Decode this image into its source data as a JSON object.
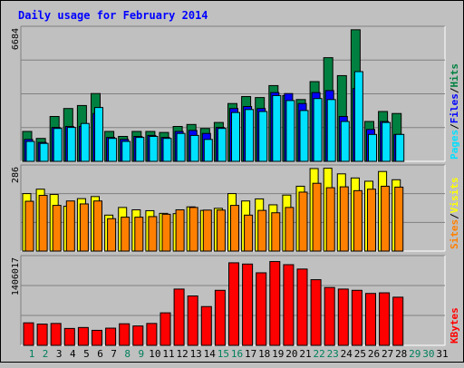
{
  "chart_data": {
    "type": "bar",
    "title": "Daily usage for February 2014",
    "categories": [
      "1",
      "2",
      "3",
      "4",
      "5",
      "6",
      "7",
      "8",
      "9",
      "10",
      "11",
      "12",
      "13",
      "14",
      "15",
      "16",
      "17",
      "18",
      "19",
      "20",
      "21",
      "22",
      "23",
      "24",
      "25",
      "26",
      "27",
      "28",
      "29",
      "30",
      "31"
    ],
    "weekend_days": [
      "1",
      "2",
      "8",
      "9",
      "15",
      "16",
      "22",
      "23",
      "29",
      "30"
    ],
    "panels": [
      {
        "id": "pages-files-hits",
        "ymax_label": "6684",
        "ylim": [
          0,
          6684
        ],
        "ylabel": [
          "Pages",
          "Files",
          "Hits"
        ],
        "series": [
          {
            "name": "Hits",
            "color": "#008040",
            "values": [
              1500,
              1150,
              2250,
              2650,
              2800,
              3400,
              1500,
              1250,
              1500,
              1500,
              1450,
              1750,
              1850,
              1650,
              1950,
              2900,
              3250,
              3200,
              3800,
              3300,
              3100,
              4000,
              5200,
              4300,
              6600,
              2000,
              2500,
              2400
            ]
          },
          {
            "name": "Files",
            "color": "#0000ff",
            "values": [
              1100,
              950,
              1700,
              1750,
              1750,
              2400,
              1200,
              1100,
              1250,
              1300,
              1200,
              1500,
              1550,
              1400,
              1700,
              2650,
              2750,
              2650,
              3450,
              3400,
              2900,
              3450,
              3550,
              2250,
              3650,
              1600,
              2000,
              1350
            ]
          },
          {
            "name": "Pages",
            "color": "#00e0ff",
            "values": [
              1000,
              900,
              1650,
              1700,
              1900,
              2700,
              1150,
              1000,
              1200,
              1250,
              1150,
              1400,
              1300,
              1100,
              1650,
              2450,
              2600,
              2500,
              3300,
              3050,
              2550,
              3150,
              3100,
              2000,
              4500,
              1350,
              1950,
              1350
            ]
          }
        ]
      },
      {
        "id": "sites-visits",
        "ymax_label": "286",
        "ylim": [
          0,
          286
        ],
        "ylabel": [
          "Sites",
          "Visits"
        ],
        "series": [
          {
            "name": "Visits",
            "color": "#ffff00",
            "values": [
              195,
              210,
              192,
              152,
              178,
              185,
              122,
              148,
              140,
              137,
              128,
              127,
              150,
              138,
              145,
              195,
              170,
              177,
              157,
              190,
              220,
              280,
              281,
              262,
              248,
              237,
              270,
              242
            ]
          },
          {
            "name": "Sites",
            "color": "#ff8000",
            "values": [
              169,
              189,
              155,
              170,
              160,
              170,
              110,
              115,
              115,
              117,
              125,
              140,
              148,
              139,
              139,
              155,
              122,
              138,
              130,
              148,
              200,
              230,
              215,
              218,
              205,
              210,
              220,
              217
            ]
          }
        ]
      },
      {
        "id": "kbytes",
        "ymax_label": "1406017",
        "ylim": [
          0,
          1406017
        ],
        "ylabel": [
          "KBytes"
        ],
        "series": [
          {
            "name": "KBytes",
            "color": "#ff0000",
            "values": [
              360000,
              340000,
              350000,
              270000,
              285000,
              240000,
              275000,
              345000,
              310000,
              350000,
              520000,
              900000,
              790000,
              620000,
              880000,
              1320000,
              1300000,
              1160000,
              1340000,
              1290000,
              1220000,
              1050000,
              925000,
              900000,
              880000,
              830000,
              840000,
              770000
            ]
          }
        ]
      }
    ]
  },
  "colors": {
    "background": "#c0c0c0",
    "plot": "#c0c0c0",
    "title": "#0000ff",
    "weekday_label": "#000000",
    "weekend_label": "#00805c",
    "separator": "#000000"
  }
}
